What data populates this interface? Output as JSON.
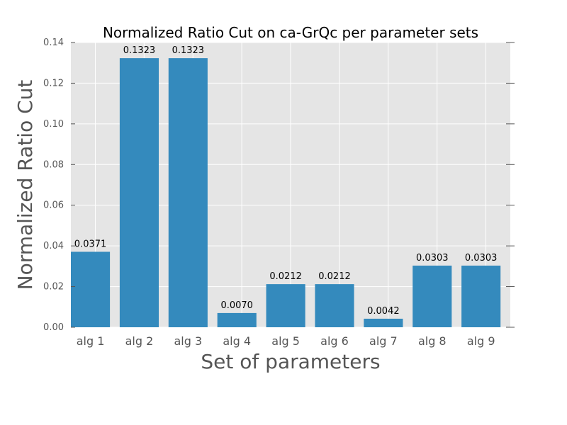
{
  "colors": {
    "bar": "#348ABD",
    "plot_background": "#E5E5E5",
    "grid": "#FFFFFF",
    "tick": "#555555"
  },
  "chart_data": {
    "type": "bar",
    "title": "Normalized Ratio Cut on ca-GrQc per parameter sets",
    "xlabel": "Set of parameters",
    "ylabel": "Normalized Ratio Cut",
    "categories": [
      "alg 1",
      "alg 2",
      "alg 3",
      "alg 4",
      "alg 5",
      "alg 6",
      "alg 7",
      "alg 8",
      "alg 9"
    ],
    "values": [
      0.0371,
      0.1323,
      0.1323,
      0.007,
      0.0212,
      0.0212,
      0.0042,
      0.0303,
      0.0303
    ],
    "value_labels": [
      "0.0371",
      "0.1323",
      "0.1323",
      "0.0070",
      "0.0212",
      "0.0212",
      "0.0042",
      "0.0303",
      "0.0303"
    ],
    "ylim": [
      0,
      0.14
    ],
    "yticks": [
      0.0,
      0.02,
      0.04,
      0.06,
      0.08,
      0.1,
      0.12,
      0.14
    ],
    "ytick_labels": [
      "0.00",
      "0.02",
      "0.04",
      "0.06",
      "0.08",
      "0.10",
      "0.12",
      "0.14"
    ],
    "grid": true,
    "legend": false
  }
}
